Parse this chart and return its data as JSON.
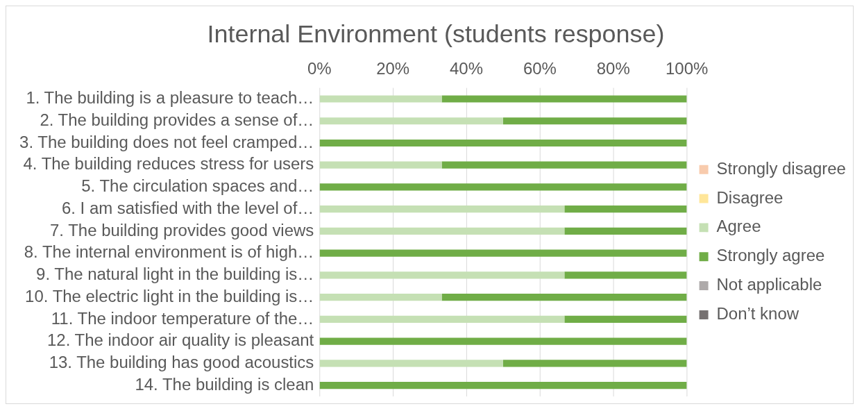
{
  "chart_data": {
    "type": "bar",
    "orientation": "horizontal",
    "stacked": true,
    "title": "Internal Environment (students response)",
    "categories": [
      "1. The building is a pleasure to teach…",
      "2. The building provides a sense of…",
      "3. The building does not feel cramped…",
      "4. The building reduces stress for users",
      "5. The circulation spaces and…",
      "6. I am satisfied with the level of…",
      "7. The building provides good views",
      "8. The internal environment is of high…",
      "9. The natural light in the building is…",
      "10. The electric light in the building is…",
      "11. The indoor temperature of the…",
      "12. The indoor air quality is pleasant",
      "13. The building has good acoustics",
      "14. The building is clean"
    ],
    "series": [
      {
        "name": "Strongly disagree",
        "color": "#f8cbad",
        "values": [
          0,
          0,
          0,
          0,
          0,
          0,
          0,
          0,
          0,
          0,
          0,
          0,
          0,
          0
        ]
      },
      {
        "name": "Disagree",
        "color": "#ffe699",
        "values": [
          0,
          0,
          0,
          0,
          0,
          0,
          0,
          0,
          0,
          0,
          0,
          0,
          0,
          0
        ]
      },
      {
        "name": "Agree",
        "color": "#c5e0b4",
        "values": [
          33.3,
          50,
          0,
          33.3,
          0,
          66.7,
          66.7,
          0,
          66.7,
          33.3,
          66.7,
          0,
          50,
          0
        ]
      },
      {
        "name": "Strongly agree",
        "color": "#70ad47",
        "values": [
          66.7,
          50,
          100,
          66.7,
          100,
          33.3,
          33.3,
          100,
          33.3,
          66.7,
          33.3,
          100,
          50,
          100
        ]
      },
      {
        "name": "Not applicable",
        "color": "#aeaaaa",
        "values": [
          0,
          0,
          0,
          0,
          0,
          0,
          0,
          0,
          0,
          0,
          0,
          0,
          0,
          0
        ]
      },
      {
        "name": "Don’t know",
        "color": "#767171",
        "values": [
          0,
          0,
          0,
          0,
          0,
          0,
          0,
          0,
          0,
          0,
          0,
          0,
          0,
          0
        ]
      }
    ],
    "xlim": [
      0,
      100
    ],
    "xticks": [
      {
        "value": 0,
        "label": "0%"
      },
      {
        "value": 20,
        "label": "20%"
      },
      {
        "value": 40,
        "label": "40%"
      },
      {
        "value": 60,
        "label": "60%"
      },
      {
        "value": 80,
        "label": "80%"
      },
      {
        "value": 100,
        "label": "100%"
      }
    ],
    "grid": "x",
    "legend": "right"
  }
}
